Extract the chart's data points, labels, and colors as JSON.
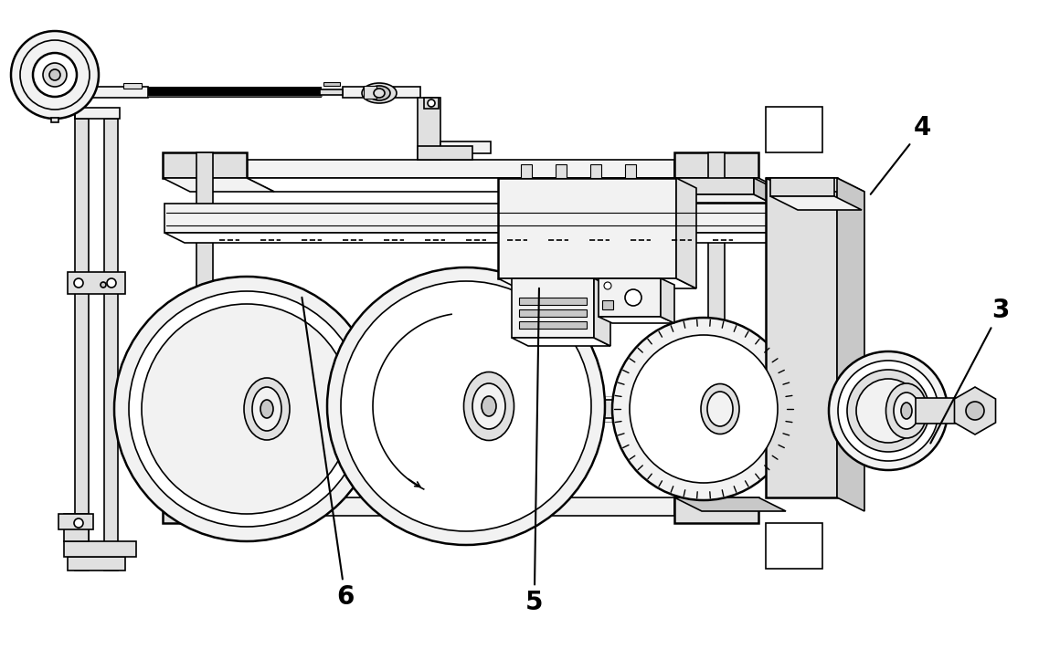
{
  "bg_color": "#ffffff",
  "line_color": "#000000",
  "label_4": "4",
  "label_3": "3",
  "label_6": "6",
  "label_5": "5",
  "label_fontsize": 20,
  "figsize": [
    11.6,
    7.34
  ],
  "dpi": 100
}
